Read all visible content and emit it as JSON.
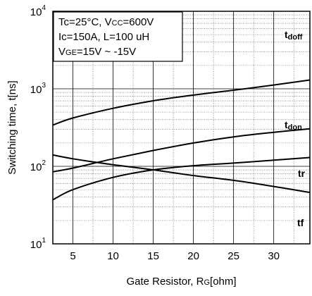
{
  "chart_data": {
    "type": "line",
    "xlabel": "Gate Resistor, R",
    "xlabel_sub": "G",
    "xlabel_unit": "[ohm]",
    "ylabel": "Switching time, t[ns]",
    "xlim": [
      2.5,
      34.5
    ],
    "ylim": [
      10,
      10000
    ],
    "yscale": "log",
    "grid": true,
    "x_ticks": [
      5,
      10,
      15,
      20,
      25,
      30
    ],
    "x_tick_labels": [
      "5",
      "10",
      "15",
      "20",
      "25",
      "30"
    ],
    "y_ticks": [
      {
        "value": 10,
        "base": "10",
        "exp": "1"
      },
      {
        "value": 100,
        "base": "10",
        "exp": "2"
      },
      {
        "value": 1000,
        "base": "10",
        "exp": "3"
      },
      {
        "value": 10000,
        "base": "10",
        "exp": "4"
      }
    ],
    "conditions": [
      {
        "pre": "Tc=25°C, V",
        "sub": "CC",
        "post": "=600V"
      },
      {
        "pre": "Ic=150A, L=100 uH",
        "sub": "",
        "post": ""
      },
      {
        "pre": "V",
        "sub": "GE",
        "post": "=15V ~ -15V"
      }
    ],
    "series": [
      {
        "name": "tdoff",
        "label_main": "t",
        "label_sub": "doff",
        "x": [
          2.5,
          5,
          10,
          15,
          20,
          25,
          30,
          34.5
        ],
        "values": [
          340,
          420,
          560,
          700,
          830,
          960,
          1120,
          1300
        ]
      },
      {
        "name": "tdon",
        "label_main": "t",
        "label_sub": "don",
        "x": [
          2.5,
          5,
          10,
          15,
          20,
          25,
          30,
          34.5
        ],
        "values": [
          85,
          95,
          125,
          160,
          200,
          240,
          275,
          305
        ]
      },
      {
        "name": "tr",
        "label_main": "tr",
        "label_sub": "",
        "x": [
          2.5,
          5,
          10,
          15,
          20,
          25,
          30,
          34.5
        ],
        "values": [
          37,
          50,
          72,
          90,
          102,
          110,
          120,
          130
        ]
      },
      {
        "name": "tf",
        "label_main": "tf",
        "label_sub": "",
        "x": [
          2.5,
          5,
          10,
          15,
          20,
          25,
          30,
          34.5
        ],
        "values": [
          140,
          125,
          105,
          90,
          76,
          66,
          55,
          46
        ]
      }
    ]
  }
}
